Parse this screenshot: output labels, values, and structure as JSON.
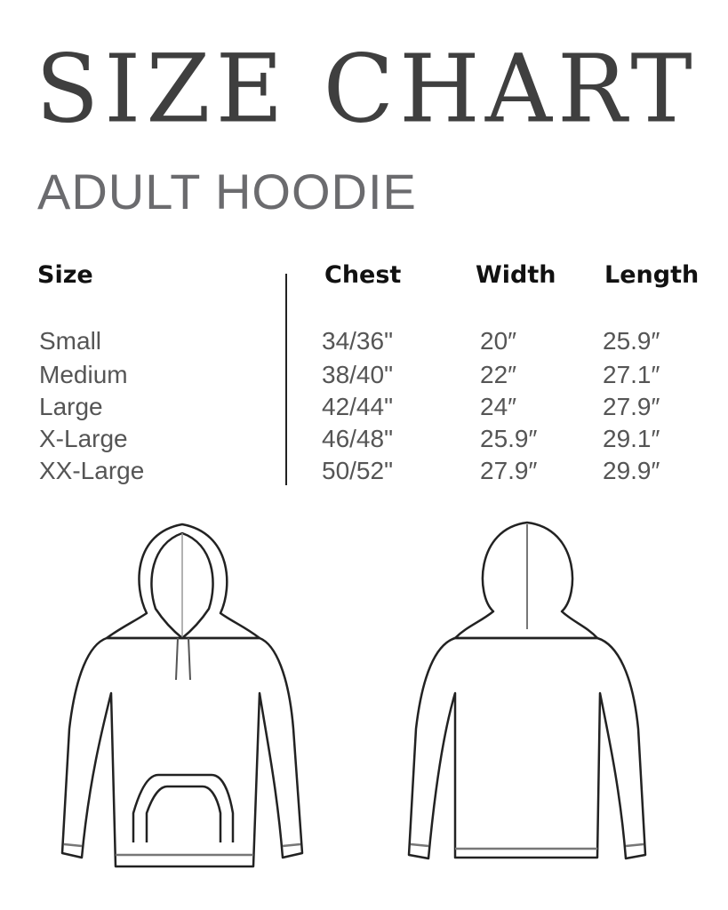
{
  "title": "SIZE CHART",
  "subtitle": "ADULT HOODIE",
  "table": {
    "headers": [
      "Size",
      "Chest",
      "Width",
      "Length"
    ],
    "rows": [
      [
        "Small",
        "34/36\"",
        "20″",
        "25.9″"
      ],
      [
        "Medium",
        "38/40\"",
        "22″",
        "27.1″"
      ],
      [
        "Large",
        "42/44\"",
        "24″",
        "27.9″"
      ],
      [
        "X-Large",
        "46/48\"",
        "25.9″",
        "29.1″"
      ],
      [
        "XX-Large",
        "50/52\"",
        "27.9″",
        "29.9″"
      ]
    ]
  },
  "illustrations": [
    "hoodie-front",
    "hoodie-back"
  ]
}
